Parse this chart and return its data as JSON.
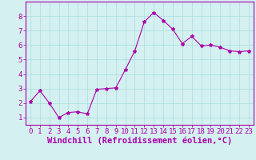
{
  "x": [
    0,
    1,
    2,
    3,
    4,
    5,
    6,
    7,
    8,
    9,
    10,
    11,
    12,
    13,
    14,
    15,
    16,
    17,
    18,
    19,
    20,
    21,
    22,
    23
  ],
  "y": [
    2.1,
    2.85,
    2.0,
    1.0,
    1.35,
    1.4,
    1.25,
    2.95,
    3.0,
    3.05,
    4.3,
    5.6,
    7.6,
    8.25,
    7.7,
    7.1,
    6.1,
    6.6,
    5.95,
    6.0,
    5.85,
    5.6,
    5.55,
    5.6
  ],
  "line_color": "#aa00aa",
  "marker": "*",
  "marker_size": 3,
  "bg_color": "#d4f0f0",
  "grid_color": "#aadddd",
  "xlabel": "Windchill (Refroidissement éolien,°C)",
  "xlabel_color": "#aa00aa",
  "tick_color": "#aa00aa",
  "ylim": [
    0.5,
    9.0
  ],
  "xlim": [
    -0.5,
    23.5
  ],
  "yticks": [
    1,
    2,
    3,
    4,
    5,
    6,
    7,
    8
  ],
  "xticks": [
    0,
    1,
    2,
    3,
    4,
    5,
    6,
    7,
    8,
    9,
    10,
    11,
    12,
    13,
    14,
    15,
    16,
    17,
    18,
    19,
    20,
    21,
    22,
    23
  ],
  "tick_fontsize": 6.5,
  "xlabel_fontsize": 7.5
}
